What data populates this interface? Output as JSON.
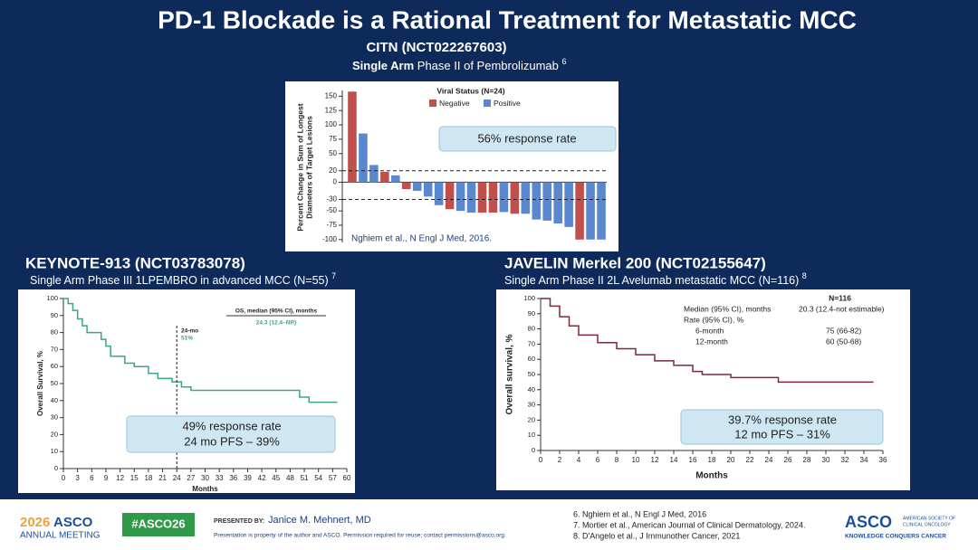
{
  "header": {
    "title": "PD-1 Blockade is a Rational Treatment for Metastatic MCC",
    "citn_heading": "CITN (NCT022267603)",
    "citn_sub_bold": "Single Arm",
    "citn_sub": "Phase II  of Pembrolizumab",
    "citn_ref": "6",
    "keynote_heading": "KEYNOTE-913 (NCT03783078)",
    "keynote_sub": "Single Arm Phase III 1LPEMBRO in advanced MCC (N=55)",
    "keynote_ref": "7",
    "javelin_heading": "JAVELIN Merkel 200 (NCT02155647)",
    "javelin_sub": "Single Arm Phase II  2L Avelumab metastatic MCC (N=116)",
    "javelin_ref": "8"
  },
  "chart_data": [
    {
      "type": "bar",
      "y_label": [
        "Percent Change in Sum of Longest",
        "Diameters of Target Lesions"
      ],
      "legend_title": "Viral Status (N=24)",
      "series": [
        {
          "name": "Negative",
          "color": "#c0504d",
          "values": [
            158,
            null,
            null,
            18,
            null,
            -12,
            null,
            null,
            null,
            -47,
            null,
            null,
            -53,
            -53,
            null,
            -55,
            null,
            null,
            null,
            null,
            null,
            -100,
            null,
            null
          ]
        },
        {
          "name": "Positive",
          "color": "#5b87cf",
          "values": [
            null,
            85,
            30,
            null,
            12,
            null,
            -15,
            -25,
            -40,
            null,
            -50,
            -53,
            null,
            null,
            -52,
            null,
            -55,
            -65,
            -67,
            -72,
            -78,
            null,
            -100,
            -100
          ]
        }
      ],
      "ylim": [
        -105,
        160
      ],
      "yticks": [
        150,
        125,
        100,
        75,
        50,
        20,
        0,
        -30,
        -50,
        -75,
        -100
      ],
      "hlines": [
        20,
        -30
      ],
      "annotations": [
        "56% response rate",
        "Nghiem et al., N Engl J Med, 2016."
      ]
    },
    {
      "type": "line",
      "color": "#3aa58c",
      "x": [
        0,
        1,
        1,
        2,
        2,
        3,
        3,
        4,
        4,
        5,
        5,
        8,
        8,
        9,
        9,
        10,
        10,
        13,
        13,
        15,
        15,
        18,
        18,
        20,
        20,
        23,
        23,
        25,
        25,
        27,
        27,
        50,
        50,
        52,
        52,
        58
      ],
      "values": [
        100,
        100,
        97,
        97,
        93,
        93,
        88,
        88,
        84,
        84,
        80,
        80,
        76,
        76,
        72,
        72,
        66,
        66,
        62,
        62,
        60,
        60,
        56,
        56,
        53,
        53,
        51,
        51,
        48,
        48,
        46,
        46,
        42,
        42,
        39,
        39
      ],
      "xlim": [
        0,
        60
      ],
      "xticks": [
        0,
        3,
        6,
        9,
        12,
        15,
        18,
        21,
        24,
        27,
        30,
        33,
        36,
        39,
        42,
        45,
        48,
        51,
        54,
        57,
        60
      ],
      "ylim": [
        0,
        100
      ],
      "yticks": [
        0,
        10,
        20,
        30,
        40,
        50,
        60,
        70,
        80,
        90,
        100
      ],
      "x_label": "Months",
      "y_label": "Overall Survival, %",
      "vline": 24,
      "annotations": [
        "24-mo",
        "51%",
        "OS, median (95% CI), months",
        "24.3 (12.4–NR)",
        "49% response rate",
        "24 mo PFS – 39%"
      ]
    },
    {
      "type": "line",
      "color": "#7a2a3a",
      "x": [
        0,
        1,
        1,
        2,
        2,
        3,
        3,
        4,
        4,
        6,
        6,
        8,
        8,
        10,
        10,
        12,
        12,
        14,
        14,
        16,
        16,
        17,
        17,
        20,
        20,
        25,
        25,
        35
      ],
      "values": [
        100,
        100,
        95,
        95,
        88,
        88,
        82,
        82,
        76,
        76,
        71,
        71,
        67,
        67,
        63,
        63,
        59,
        59,
        56,
        56,
        52,
        52,
        50,
        50,
        48,
        48,
        45,
        45
      ],
      "xlim": [
        0,
        36
      ],
      "xticks": [
        0,
        2,
        4,
        6,
        8,
        10,
        12,
        14,
        16,
        18,
        20,
        22,
        24,
        26,
        28,
        30,
        32,
        34,
        36
      ],
      "ylim": [
        0,
        100
      ],
      "yticks": [
        0,
        10,
        20,
        30,
        40,
        50,
        60,
        70,
        80,
        90,
        100
      ],
      "x_label": "Months",
      "y_label": "Overall survival, %",
      "annotations": [
        "N=116",
        "Median (95% CI), months",
        "20.3 (12.4-not estimable)",
        "Rate (95% CI), %",
        "6-month",
        "75 (66-82)",
        "12-month",
        "60 (50-68)",
        "39.7% response rate",
        "12 mo PFS – 31%"
      ]
    }
  ],
  "footer": {
    "meeting_year": "2026",
    "meeting_org": "ASCO",
    "meeting_name": "ANNUAL MEETING",
    "hashtag": "#ASCO26",
    "presented_by": "PRESENTED BY:",
    "presenter": "Janice M. Mehnert, MD",
    "notice": "Presentation is property of the author and ASCO. Permission required for reuse; contact permissions@asco.org.",
    "references": [
      "6. Nghiem et al., N Engl J Med, 2016",
      "7. Mortier et al., American Journal of Clinical Dermatology, 2024.",
      "8. D'Angelo et al., J Immunother Cancer, 2021"
    ],
    "logo": "ASCO",
    "logo_line1": "AMERICAN SOCIETY OF",
    "logo_line2": "CLINICAL ONCOLOGY",
    "tagline": "KNOWLEDGE CONQUERS CANCER"
  }
}
